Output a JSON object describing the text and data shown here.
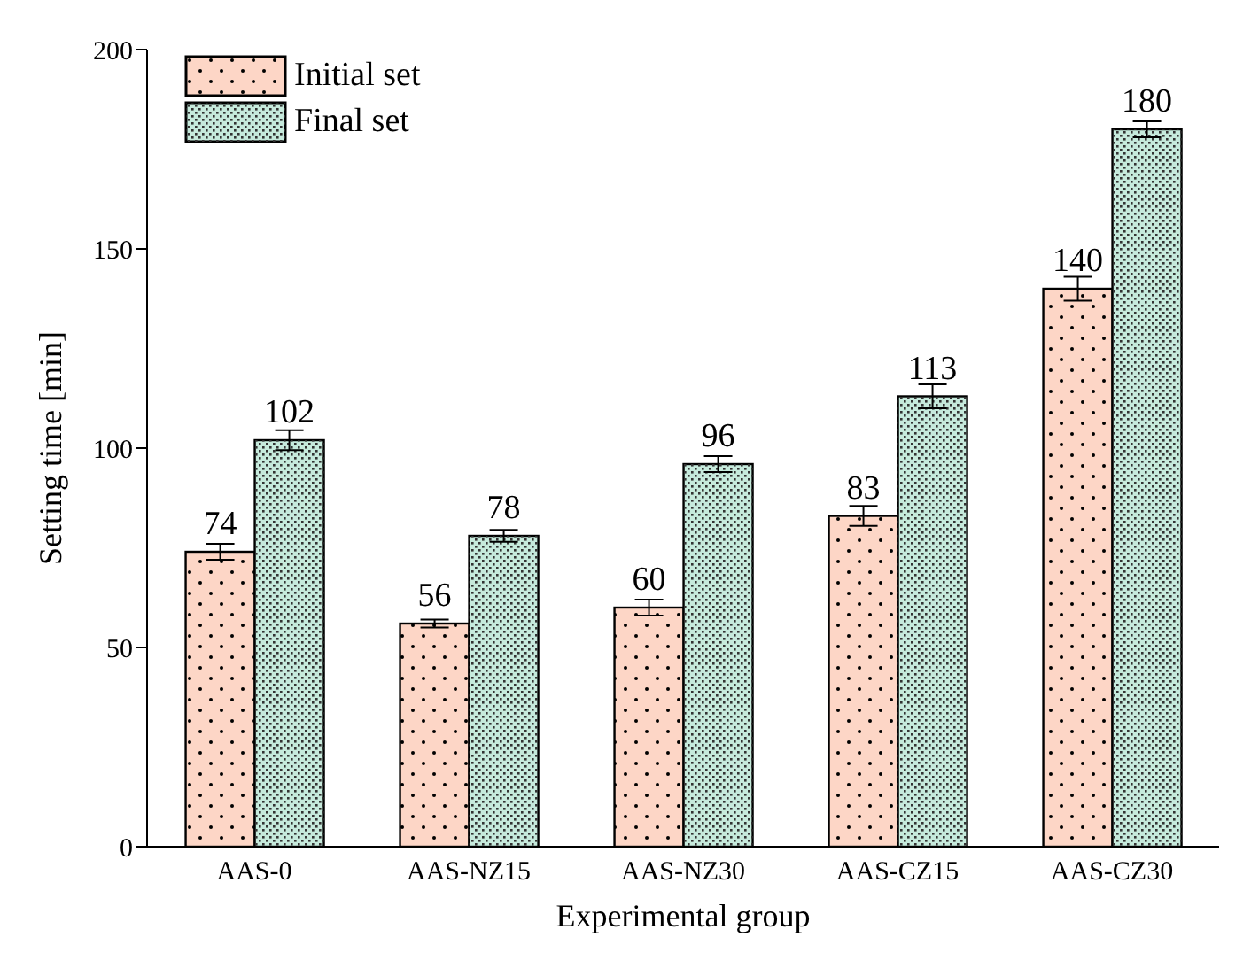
{
  "chart_data": {
    "type": "bar",
    "xlabel": "Experimental group",
    "ylabel": "Setting time [min]",
    "categories": [
      "AAS-0",
      "AAS-NZ15",
      "AAS-NZ30",
      "AAS-CZ15",
      "AAS-CZ30"
    ],
    "series": [
      {
        "name": "Initial set",
        "color": "#fdd6c6",
        "values": [
          74,
          56,
          60,
          83,
          140
        ],
        "errors": [
          2,
          1,
          2,
          2.5,
          3
        ]
      },
      {
        "name": "Final set",
        "color": "#c6eadc",
        "values": [
          102,
          78,
          96,
          113,
          180
        ],
        "errors": [
          2.5,
          1.5,
          2,
          3,
          2
        ]
      }
    ],
    "ylim": [
      0,
      200
    ],
    "yticks": [
      0,
      50,
      100,
      150,
      200
    ],
    "grid": false,
    "legend": "top left",
    "data_labels": true
  }
}
